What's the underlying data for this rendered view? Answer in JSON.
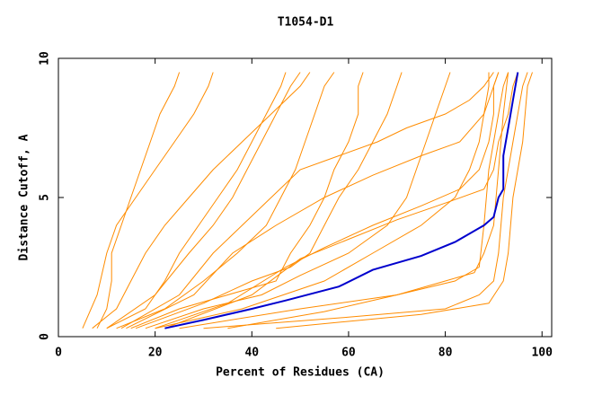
{
  "chart_data": {
    "type": "line",
    "title": "T1054-D1",
    "xlabel": "Percent of Residues (CA)",
    "ylabel": "Distance Cutoff, A",
    "xlim": [
      0,
      102
    ],
    "ylim": [
      0,
      10
    ],
    "xticks": [
      0,
      20,
      40,
      60,
      80,
      100
    ],
    "yticks": [
      0,
      5,
      10
    ],
    "series": [
      {
        "color": "#ff8c00",
        "x": [
          8,
          10,
          11,
          11,
          13,
          15,
          17,
          19,
          21,
          24,
          25
        ],
        "values": [
          0.3,
          1,
          2,
          3,
          4,
          5,
          6,
          7,
          8,
          9,
          9.5
        ]
      },
      {
        "color": "#ff8c00",
        "x": [
          5,
          8,
          10,
          12,
          16,
          20,
          24,
          28,
          31,
          32
        ],
        "values": [
          0.3,
          1.5,
          3,
          4,
          5,
          6,
          7,
          8,
          9,
          9.5
        ]
      },
      {
        "color": "#ff8c00",
        "x": [
          10,
          18,
          22,
          25,
          29,
          33,
          37,
          40,
          43,
          46,
          47
        ],
        "values": [
          0.3,
          1,
          2,
          3,
          4,
          5,
          6,
          7,
          8,
          9,
          9.5
        ]
      },
      {
        "color": "#ff8c00",
        "x": [
          12,
          22,
          30,
          37,
          43,
          46,
          49,
          51,
          53,
          55,
          57
        ],
        "values": [
          0.3,
          1,
          2,
          3,
          4,
          5,
          6,
          7,
          8,
          9,
          9.5
        ]
      },
      {
        "color": "#ff8c00",
        "x": [
          15,
          25,
          35,
          45,
          48,
          52,
          55,
          57,
          60,
          62,
          62,
          63
        ],
        "values": [
          0.3,
          1,
          1.5,
          2,
          3,
          4,
          5,
          6,
          7,
          8,
          9,
          9.5
        ]
      },
      {
        "color": "#ff8c00",
        "x": [
          18,
          30,
          42,
          50,
          60,
          68,
          72,
          74,
          76,
          78,
          80,
          81
        ],
        "values": [
          0.3,
          1,
          1.5,
          2.2,
          3,
          4,
          5,
          6,
          7,
          8,
          9,
          9.5
        ]
      },
      {
        "color": "#ff8c00",
        "x": [
          20,
          38,
          55,
          65,
          75,
          82,
          85,
          87,
          88,
          89,
          89
        ],
        "values": [
          0.3,
          1,
          2,
          3,
          4,
          5,
          6,
          7,
          8,
          9,
          9.5
        ]
      },
      {
        "color": "#ff8c00",
        "x": [
          25,
          50,
          70,
          82,
          87,
          88,
          89,
          90,
          91,
          92,
          93
        ],
        "values": [
          0.3,
          1,
          1.5,
          2,
          2.5,
          4,
          6,
          7,
          8,
          9,
          9.5
        ]
      },
      {
        "color": "#ff8c00",
        "x": [
          30,
          60,
          80,
          87,
          90,
          91,
          92,
          94,
          96,
          97
        ],
        "values": [
          0.3,
          0.7,
          1,
          1.5,
          2,
          3,
          5,
          7,
          9,
          9.5
        ]
      },
      {
        "color": "#ff8c00",
        "x": [
          45,
          75,
          89,
          92,
          93,
          94,
          96,
          97,
          98
        ],
        "values": [
          0.3,
          0.8,
          1.2,
          2,
          3,
          5,
          7,
          9,
          9.5
        ]
      },
      {
        "color": "#ff8c00",
        "x": [
          22,
          40,
          50,
          60,
          70,
          80,
          88,
          90,
          91,
          93,
          94,
          95
        ],
        "values": [
          0.3,
          1.5,
          2.8,
          3.5,
          4.2,
          4.8,
          5.3,
          6,
          7,
          8,
          9,
          9.5
        ]
      },
      {
        "color": "#ff8c00",
        "x": [
          14,
          28,
          36,
          45,
          55,
          65,
          75,
          83,
          88,
          90,
          91
        ],
        "values": [
          0.3,
          1.5,
          3,
          4,
          5,
          5.8,
          6.5,
          7,
          8,
          9,
          9.5
        ]
      },
      {
        "color": "#ff8c00",
        "x": [
          7,
          12,
          15,
          18,
          22,
          27,
          32,
          38,
          44,
          50,
          52
        ],
        "values": [
          0.3,
          1,
          2,
          3,
          4,
          5,
          6,
          7,
          8,
          9,
          9.5
        ]
      },
      {
        "color": "#ff8c00",
        "x": [
          16,
          30,
          40,
          48,
          52,
          55,
          58,
          62,
          65,
          68,
          70,
          71
        ],
        "values": [
          0.3,
          1.2,
          2,
          2.5,
          3,
          4,
          5,
          6,
          7,
          8,
          9,
          9.5
        ]
      },
      {
        "color": "#ff8c00",
        "x": [
          20,
          35,
          47,
          55,
          65,
          75,
          83,
          87,
          89,
          90,
          90,
          91
        ],
        "values": [
          0.3,
          1.2,
          2.5,
          3.2,
          4,
          4.7,
          5.3,
          6,
          7,
          8,
          9,
          9.5
        ]
      },
      {
        "color": "#ff8c00",
        "x": [
          35,
          55,
          70,
          80,
          86,
          88,
          90,
          91,
          92,
          93
        ],
        "values": [
          0.3,
          0.9,
          1.5,
          2,
          2.3,
          3,
          4,
          6,
          8,
          9.5
        ]
      },
      {
        "color": "#ff8c00",
        "x": [
          10,
          20,
          27,
          32,
          36,
          39,
          42,
          45,
          48,
          50
        ],
        "values": [
          0.3,
          1.5,
          3,
          4,
          5,
          6,
          7,
          8,
          9,
          9.5
        ]
      },
      {
        "color": "#ff8c00",
        "x": [
          13,
          25,
          32,
          38,
          44,
          50,
          58,
          66,
          72,
          80,
          85,
          88,
          90
        ],
        "values": [
          0.3,
          1.5,
          3,
          4,
          5,
          6,
          6.5,
          7,
          7.5,
          8,
          8.5,
          9,
          9.5
        ]
      },
      {
        "color": "#0000cd",
        "x": [
          22,
          30,
          40,
          47,
          58,
          65,
          75,
          82,
          88,
          90,
          91,
          92,
          92,
          93,
          94,
          95
        ],
        "values": [
          0.3,
          0.6,
          1,
          1.3,
          1.8,
          2.4,
          2.9,
          3.4,
          4,
          4.3,
          5,
          5.3,
          6.5,
          7.5,
          8.5,
          9.5
        ]
      }
    ]
  }
}
